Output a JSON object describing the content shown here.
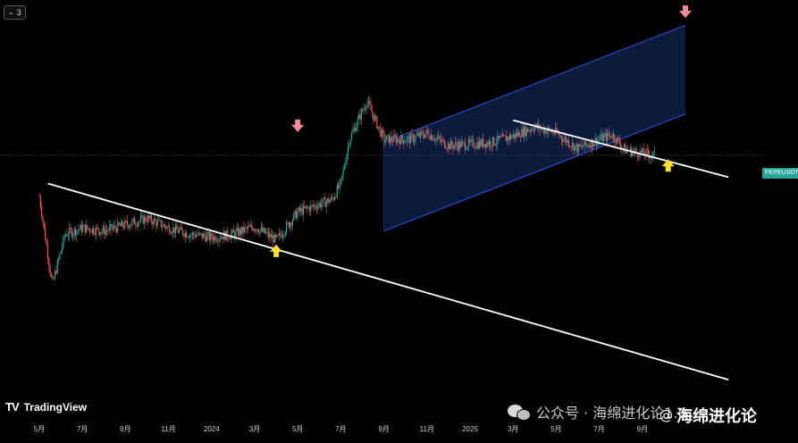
{
  "toolbar": {
    "collapse_count": "3"
  },
  "symbol_tag": "PEPEUSDT",
  "logo": {
    "mark": "TV",
    "name": "TradingView"
  },
  "watermark": {
    "text": "公众号 · 海绵进化论1.0",
    "author_at": "@",
    "author": "海绵进化论"
  },
  "colors": {
    "background": "#000000",
    "up": "#26a69a",
    "down": "#ef5350",
    "channel_fill": "#0c1a3d",
    "channel_border": "#2b47c8",
    "trendline": "#ffffff",
    "arrow_down": "#f28b95",
    "arrow_up": "#ffe12e",
    "price_line": "#4a4a4a"
  },
  "chart_data": {
    "type": "line",
    "title": "",
    "xlabel": "",
    "ylabel": "",
    "x_axis_ticks": [
      "5月",
      "7月",
      "9月",
      "11月",
      "2024",
      "3月",
      "5月",
      "7月",
      "9月",
      "11月",
      "2025",
      "3月",
      "5月",
      "7月",
      "9月"
    ],
    "grid": false,
    "price_series": {
      "name": "PEPEUSDT",
      "x": [
        0,
        0.3,
        0.6,
        1.0,
        1.5,
        2.0,
        2.5,
        3.0,
        3.5,
        4.0,
        4.5,
        5.0,
        5.5,
        6.0,
        6.4,
        6.8,
        7.0,
        7.2,
        7.6,
        8.0,
        8.6,
        9.0,
        9.5,
        10.0,
        10.5,
        11.0,
        11.5,
        12.0,
        12.5,
        13.0,
        13.3,
        13.6,
        14.0,
        14.3
      ],
      "y": [
        390,
        250,
        330,
        340,
        335,
        345,
        355,
        340,
        330,
        325,
        330,
        342,
        320,
        365,
        375,
        385,
        410,
        480,
        540,
        480,
        480,
        490,
        470,
        472,
        475,
        485,
        500,
        490,
        465,
        480,
        487,
        463,
        458,
        454
      ]
    },
    "price_level_line": 455,
    "channel": {
      "lower_start": [
        8.0,
        335
      ],
      "lower_end": [
        15.0,
        520
      ],
      "upper_start": [
        8.0,
        475
      ],
      "upper_end": [
        15.0,
        660
      ]
    },
    "trendlines": [
      {
        "start": [
          0.2,
          410
        ],
        "end": [
          16.0,
          100
        ]
      },
      {
        "start": [
          11.0,
          510
        ],
        "end": [
          16.0,
          420
        ]
      }
    ],
    "markers": [
      {
        "kind": "down-arrow",
        "x": 6.0,
        "y": 500
      },
      {
        "kind": "up-arrow",
        "x": 5.5,
        "y": 305
      },
      {
        "kind": "down-arrow",
        "x": 15.0,
        "y": 680
      },
      {
        "kind": "up-arrow",
        "x": 14.6,
        "y": 440
      }
    ]
  }
}
